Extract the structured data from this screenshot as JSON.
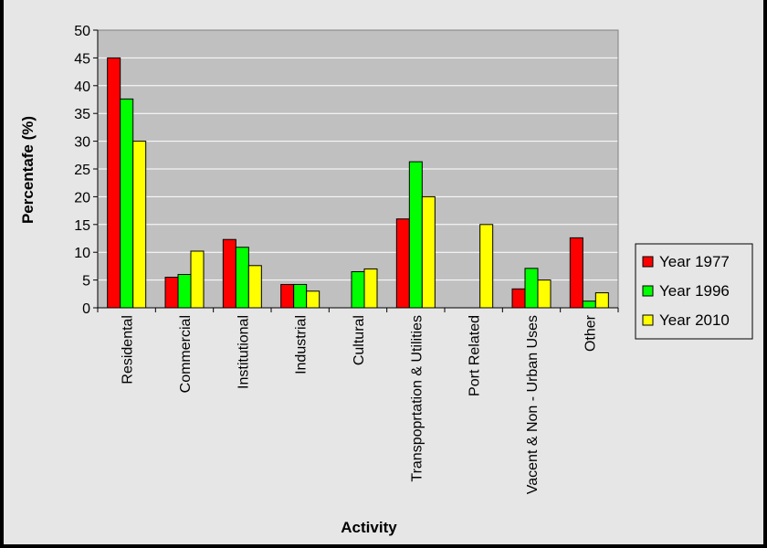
{
  "colors": {
    "plot_background": "#c0c0c0",
    "chart_background": "#e6e6e6",
    "gridline": "#ffffff"
  },
  "chart_data": {
    "type": "bar",
    "title": "",
    "xlabel": "Activity",
    "ylabel": "Percentafe (%)",
    "ylim": [
      0,
      50
    ],
    "yticks": [
      0,
      5,
      10,
      15,
      20,
      25,
      30,
      35,
      40,
      45,
      50
    ],
    "grid": true,
    "legend_position": "right",
    "categories": [
      "Residental",
      "Commercial",
      "Institutional",
      "Industrial",
      "Cultural",
      "Transpoprtation & Utilities",
      "Port Related",
      "Vacent & Non - Urban Uses",
      "Other"
    ],
    "series": [
      {
        "name": "Year 1977",
        "color": "#ff0000",
        "values": [
          45,
          5.5,
          12.3,
          4.2,
          0,
          16,
          0,
          3.4,
          12.6
        ]
      },
      {
        "name": "Year 1996",
        "color": "#00ff00",
        "values": [
          37.6,
          6,
          10.9,
          4.2,
          6.5,
          26.3,
          0,
          7.1,
          1.2
        ]
      },
      {
        "name": " Year 2010",
        "color": "#ffff00",
        "values": [
          30,
          10.2,
          7.6,
          3,
          7,
          20,
          15,
          5,
          2.7
        ]
      }
    ]
  }
}
